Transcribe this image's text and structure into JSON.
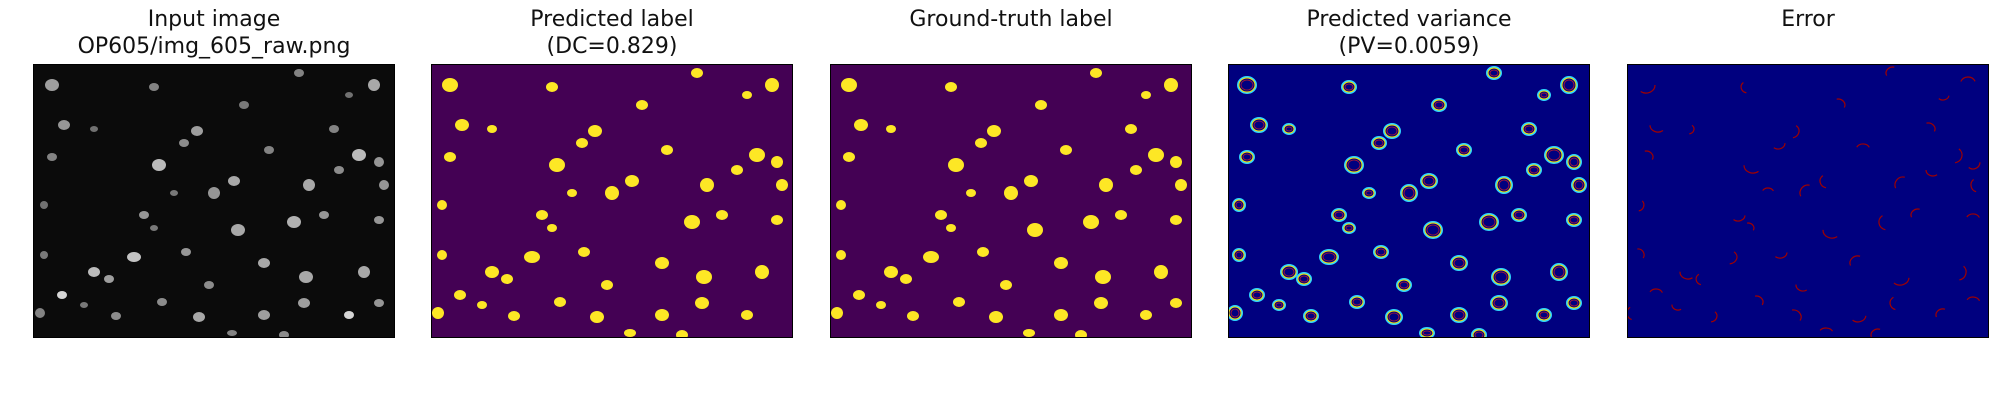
{
  "panels": [
    {
      "title_line1": "Input image",
      "title_line2": "OP605/img_605_raw.png",
      "kind": "raw"
    },
    {
      "title_line1": "Predicted label",
      "title_line2": "(DC=0.829)",
      "kind": "pred"
    },
    {
      "title_line1": "",
      "title_line2": "Ground-truth label",
      "kind": "gt"
    },
    {
      "title_line1": "Predicted variance",
      "title_line2": "(PV=0.0059)",
      "kind": "variance"
    },
    {
      "title_line1": "",
      "title_line2": "Error",
      "kind": "error"
    }
  ],
  "colors": {
    "raw_background": "#0b0b0b",
    "raw_nucleus": "#b8b8b8",
    "label_background": "#440154",
    "label_foreground": "#fde725",
    "variance_background": "#00007f",
    "variance_ring_outer": "#2fd6ff",
    "variance_ring_mid": "#ffe000",
    "variance_ring_inner": "#e02020",
    "error_background": "#00007f",
    "error_mark": "#a00000"
  }
}
